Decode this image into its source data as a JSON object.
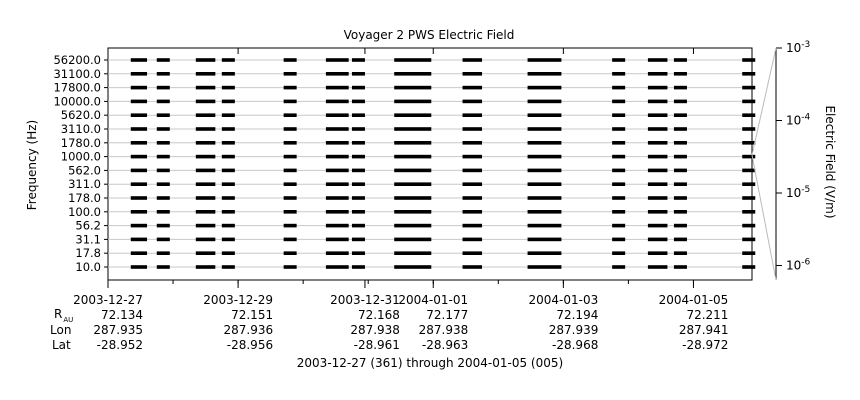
{
  "chart_data": {
    "type": "heatmap",
    "title": "Voyager 2 PWS Electric Field",
    "ylabel": "Frequency (Hz)",
    "colorbar_label": "Electric Field (V/m)",
    "colorbar_ticks": [
      "10-3",
      "10-4",
      "10-5",
      "10-6"
    ],
    "colorbar_tick_values": [
      0.001,
      0.0001,
      1e-05,
      1e-06
    ],
    "y_scale": "log",
    "x_range_days": [
      0,
      9.9
    ],
    "frequency_channels": [
      "10.0",
      "17.8",
      "31.1",
      "56.2",
      "100.0",
      "178.0",
      "311.0",
      "562.0",
      "1000.0",
      "1780.0",
      "3110.0",
      "5620.0",
      "10000.0",
      "17800.0",
      "31100.0",
      "56200.0"
    ],
    "x_ticks": [
      {
        "day": 0,
        "date": "2003-12-27",
        "r_au": "72.134",
        "lon": "287.935",
        "lat": "-28.952"
      },
      {
        "day": 2,
        "date": "2003-12-29",
        "r_au": "72.151",
        "lon": "287.936",
        "lat": "-28.956"
      },
      {
        "day": 3.95,
        "date": "2003-12-31",
        "r_au": "72.168",
        "lon": "287.938",
        "lat": "-28.961"
      },
      {
        "day": 5,
        "date": "2004-01-01",
        "r_au": "72.177",
        "lon": "287.938",
        "lat": "-28.963"
      },
      {
        "day": 7,
        "date": "2004-01-03",
        "r_au": "72.194",
        "lon": "287.939",
        "lat": "-28.968"
      },
      {
        "day": 9,
        "date": "2004-01-05",
        "r_au": "72.211",
        "lon": "287.941",
        "lat": "-28.972"
      }
    ],
    "row_labels": {
      "r": "R",
      "r_sub": "AU",
      "lon": "Lon",
      "lat": "Lat"
    },
    "x_caption": "2003-12-27 (361) through 2004-01-05 (005)",
    "data_segments_days": [
      [
        0.35,
        0.6
      ],
      [
        0.75,
        0.95
      ],
      [
        1.35,
        1.65
      ],
      [
        1.75,
        1.95
      ],
      [
        2.7,
        2.9
      ],
      [
        3.35,
        3.7
      ],
      [
        3.75,
        3.95
      ],
      [
        4.4,
        4.97
      ],
      [
        5.45,
        5.75
      ],
      [
        6.45,
        6.97
      ],
      [
        7.75,
        7.95
      ],
      [
        8.3,
        8.6
      ],
      [
        8.7,
        8.9
      ],
      [
        9.75,
        9.95
      ]
    ]
  }
}
